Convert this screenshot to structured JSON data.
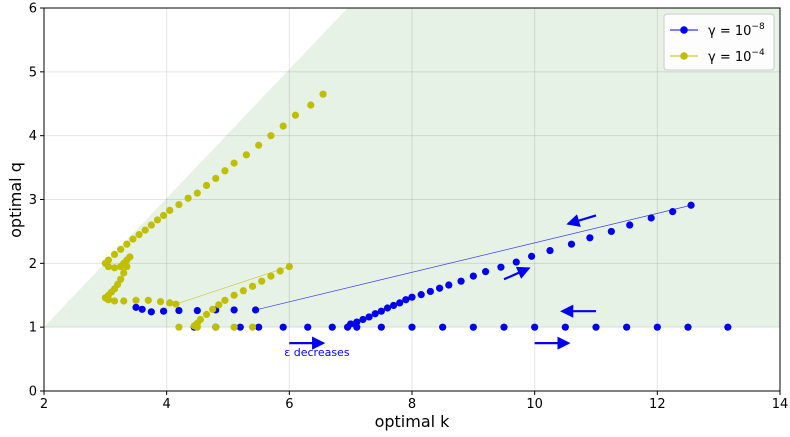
{
  "chart_data": {
    "type": "scatter",
    "xlabel": "optimal k",
    "ylabel": "optimal q",
    "xlim": [
      2,
      14
    ],
    "ylim": [
      0,
      6
    ],
    "xticks": [
      2,
      4,
      6,
      8,
      10,
      12,
      14
    ],
    "yticks": [
      0,
      1,
      2,
      3,
      4,
      5,
      6
    ],
    "xtick_labels": [
      "2",
      "4",
      "6",
      "8",
      "10",
      "12",
      "14"
    ],
    "ytick_labels": [
      "0",
      "1",
      "2",
      "3",
      "4",
      "5",
      "6"
    ],
    "grid": true,
    "legend_position": "top-right",
    "shaded_region": {
      "color": "#e6f2e6",
      "vertices": [
        [
          2,
          1
        ],
        [
          6.95,
          6
        ],
        [
          14,
          6
        ],
        [
          14,
          1
        ]
      ]
    },
    "annotation": {
      "text": "ε decreases",
      "x": 6.45,
      "y": 0.55,
      "color": "#0000ee"
    },
    "arrows": [
      {
        "from": [
          6.0,
          0.75
        ],
        "to": [
          6.55,
          0.75
        ]
      },
      {
        "from": [
          10.0,
          0.75
        ],
        "to": [
          10.55,
          0.75
        ]
      },
      {
        "from": [
          11.0,
          1.25
        ],
        "to": [
          10.45,
          1.25
        ]
      },
      {
        "from": [
          11.0,
          2.75
        ],
        "to": [
          10.55,
          2.62
        ]
      },
      {
        "from": [
          9.5,
          1.75
        ],
        "to": [
          9.9,
          1.92
        ]
      }
    ],
    "series": [
      {
        "name": "γ = 10⁻⁸",
        "legend_base": "γ = 10",
        "legend_exp": "−8",
        "color": "#0000ee",
        "points": [
          [
            13.15,
            1.0
          ],
          [
            12.5,
            1.0
          ],
          [
            12.0,
            1.0
          ],
          [
            11.5,
            1.0
          ],
          [
            11.0,
            1.0
          ],
          [
            10.5,
            1.0
          ],
          [
            10.0,
            1.0
          ],
          [
            9.5,
            1.0
          ],
          [
            9.0,
            1.0
          ],
          [
            8.5,
            1.0
          ],
          [
            8.0,
            1.0
          ],
          [
            7.5,
            1.0
          ],
          [
            7.1,
            1.0
          ],
          [
            6.95,
            1.0
          ],
          [
            7.0,
            1.05
          ],
          [
            7.1,
            1.08
          ],
          [
            7.2,
            1.12
          ],
          [
            7.3,
            1.16
          ],
          [
            7.4,
            1.21
          ],
          [
            7.5,
            1.25
          ],
          [
            7.6,
            1.3
          ],
          [
            7.7,
            1.34
          ],
          [
            7.8,
            1.38
          ],
          [
            7.9,
            1.43
          ],
          [
            8.0,
            1.47
          ],
          [
            8.15,
            1.51
          ],
          [
            8.3,
            1.56
          ],
          [
            8.45,
            1.61
          ],
          [
            8.6,
            1.66
          ],
          [
            8.8,
            1.72
          ],
          [
            9.0,
            1.8
          ],
          [
            9.2,
            1.87
          ],
          [
            9.45,
            1.94
          ],
          [
            9.7,
            2.02
          ],
          [
            9.95,
            2.11
          ],
          [
            10.25,
            2.2
          ],
          [
            10.6,
            2.3
          ],
          [
            10.9,
            2.4
          ],
          [
            11.25,
            2.5
          ],
          [
            11.55,
            2.6
          ],
          [
            11.9,
            2.71
          ],
          [
            12.25,
            2.81
          ],
          [
            12.55,
            2.91
          ],
          [
            5.45,
            1.27
          ],
          [
            5.1,
            1.27
          ],
          [
            4.8,
            1.27
          ],
          [
            4.5,
            1.26
          ],
          [
            4.2,
            1.26
          ],
          [
            3.95,
            1.25
          ],
          [
            3.75,
            1.24
          ],
          [
            3.6,
            1.28
          ],
          [
            3.5,
            1.31
          ],
          [
            4.45,
            1.0
          ],
          [
            4.8,
            1.0
          ],
          [
            5.2,
            1.0
          ],
          [
            5.5,
            1.0
          ],
          [
            5.9,
            1.0
          ],
          [
            6.3,
            1.0
          ],
          [
            6.7,
            1.0
          ]
        ],
        "lines": [
          [
            [
              5.45,
              1.27
            ],
            [
              12.55,
              2.91
            ]
          ]
        ]
      },
      {
        "name": "γ = 10⁻⁴",
        "legend_base": "γ = 10",
        "legend_exp": "−4",
        "color": "#bfbf00",
        "points": [
          [
            6.55,
            4.65
          ],
          [
            6.35,
            4.48
          ],
          [
            6.1,
            4.32
          ],
          [
            5.9,
            4.15
          ],
          [
            5.7,
            4.0
          ],
          [
            5.5,
            3.85
          ],
          [
            5.3,
            3.7
          ],
          [
            5.1,
            3.57
          ],
          [
            4.95,
            3.45
          ],
          [
            4.8,
            3.33
          ],
          [
            4.65,
            3.22
          ],
          [
            4.5,
            3.1
          ],
          [
            4.35,
            3.02
          ],
          [
            4.2,
            2.92
          ],
          [
            4.05,
            2.83
          ],
          [
            3.95,
            2.75
          ],
          [
            3.85,
            2.68
          ],
          [
            3.75,
            2.6
          ],
          [
            3.65,
            2.52
          ],
          [
            3.55,
            2.45
          ],
          [
            3.45,
            2.38
          ],
          [
            3.35,
            2.3
          ],
          [
            3.25,
            2.22
          ],
          [
            3.15,
            2.14
          ],
          [
            3.05,
            2.05
          ],
          [
            3.0,
            2.0
          ],
          [
            3.05,
            1.95
          ],
          [
            3.15,
            1.93
          ],
          [
            3.25,
            1.95
          ],
          [
            3.3,
            2.0
          ],
          [
            3.35,
            2.05
          ],
          [
            3.4,
            2.1
          ],
          [
            3.35,
            1.95
          ],
          [
            3.3,
            1.85
          ],
          [
            3.25,
            1.75
          ],
          [
            3.2,
            1.67
          ],
          [
            3.15,
            1.6
          ],
          [
            3.1,
            1.55
          ],
          [
            3.05,
            1.5
          ],
          [
            3.0,
            1.46
          ],
          [
            3.05,
            1.43
          ],
          [
            3.15,
            1.41
          ],
          [
            3.3,
            1.41
          ],
          [
            3.5,
            1.42
          ],
          [
            3.7,
            1.42
          ],
          [
            3.9,
            1.4
          ],
          [
            4.05,
            1.38
          ],
          [
            4.15,
            1.36
          ],
          [
            6.0,
            1.95
          ],
          [
            5.85,
            1.88
          ],
          [
            5.7,
            1.8
          ],
          [
            5.55,
            1.72
          ],
          [
            5.4,
            1.64
          ],
          [
            5.25,
            1.57
          ],
          [
            5.1,
            1.5
          ],
          [
            4.95,
            1.42
          ],
          [
            4.85,
            1.35
          ],
          [
            4.75,
            1.28
          ],
          [
            4.65,
            1.2
          ],
          [
            4.55,
            1.12
          ],
          [
            4.5,
            1.06
          ],
          [
            4.45,
            1.02
          ],
          [
            4.2,
            1.0
          ],
          [
            4.5,
            1.0
          ],
          [
            4.8,
            1.0
          ],
          [
            5.1,
            1.0
          ],
          [
            5.4,
            1.0
          ]
        ],
        "lines": [
          [
            [
              4.15,
              1.36
            ],
            [
              6.0,
              1.95
            ]
          ]
        ]
      }
    ]
  }
}
